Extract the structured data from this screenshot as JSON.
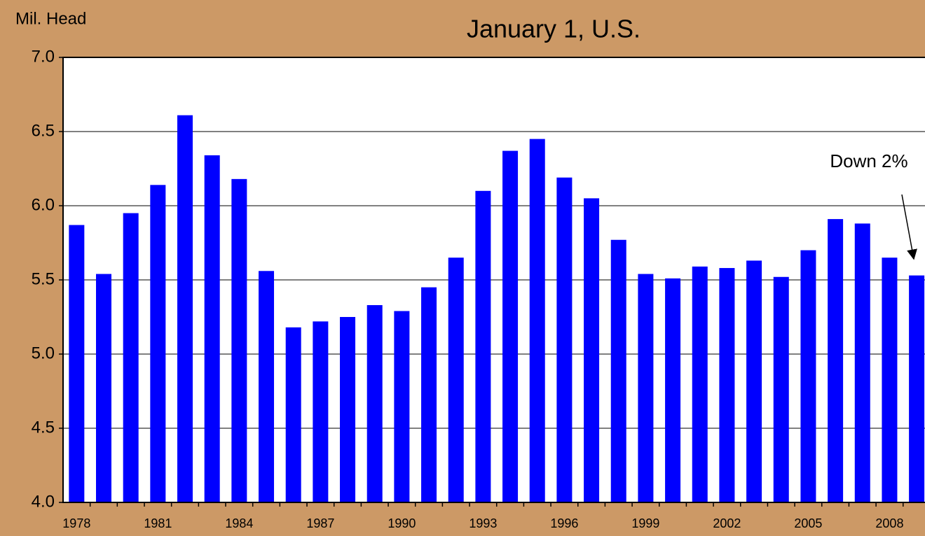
{
  "chart_data": {
    "type": "bar",
    "title": "January 1, U.S.",
    "y_label": "Mil. Head",
    "annotation": "Down 2%",
    "categories": [
      "1978",
      null,
      null,
      "1981",
      null,
      null,
      "1984",
      null,
      null,
      "1987",
      null,
      null,
      "1990",
      null,
      null,
      "1993",
      null,
      null,
      "1996",
      null,
      null,
      "1999",
      null,
      null,
      "2002",
      null,
      null,
      "2005",
      null,
      null,
      "2008",
      null
    ],
    "values": [
      5.87,
      5.54,
      5.95,
      6.14,
      6.61,
      6.34,
      6.18,
      5.56,
      5.18,
      5.22,
      5.25,
      5.33,
      5.29,
      5.45,
      5.65,
      6.1,
      6.37,
      6.45,
      6.19,
      6.05,
      5.77,
      5.54,
      5.51,
      5.59,
      5.58,
      5.63,
      5.52,
      5.7,
      5.91,
      5.88,
      5.65,
      5.53
    ],
    "color": "#0000ff",
    "ylim": [
      4,
      7
    ],
    "yticks": [
      {
        "value": 4,
        "label": "4.0"
      },
      4.5,
      {
        "value": 5,
        "label": "5.0"
      },
      5.5,
      {
        "value": 6,
        "label": "6.0"
      },
      6.5,
      {
        "value": 7,
        "label": "7.0"
      }
    ],
    "grid": true
  }
}
